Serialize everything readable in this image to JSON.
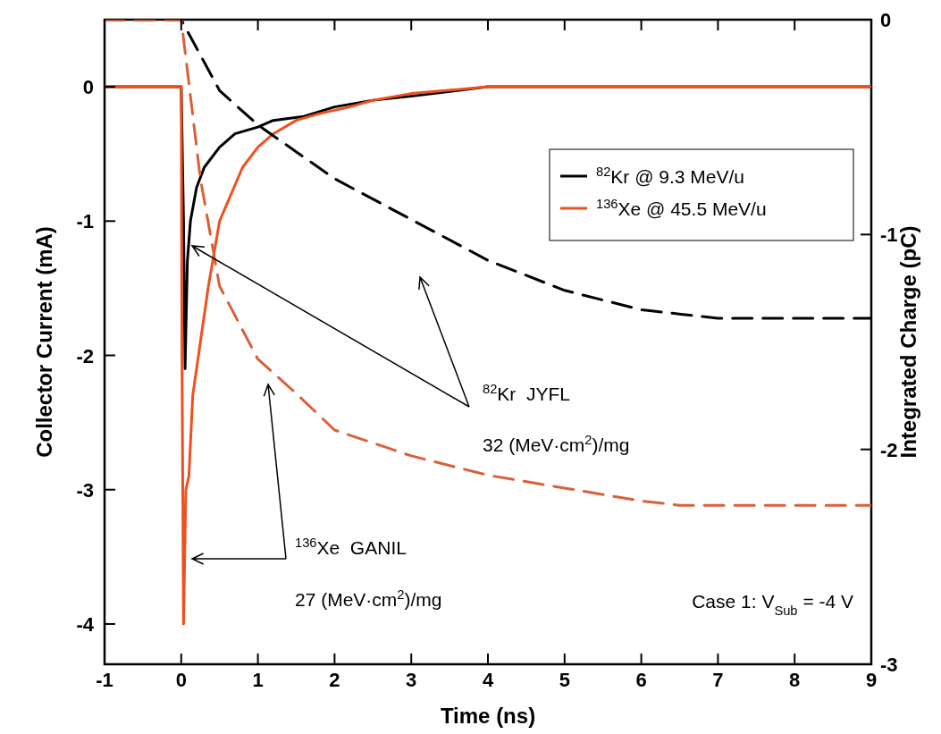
{
  "chart_data": {
    "type": "line",
    "xlabel": "Time (ns)",
    "ylabel": "Collector Current (mA)",
    "y2label": "Integrated Charge (pC)",
    "xlim": [
      -1,
      9
    ],
    "xticks": [
      -1,
      0,
      1,
      2,
      3,
      4,
      5,
      6,
      7,
      8,
      9
    ],
    "ylim": [
      -4.3,
      0.5
    ],
    "yticks": [
      -4,
      -3,
      -2,
      -1,
      0
    ],
    "y2lim": [
      -3,
      0
    ],
    "y2ticks": [
      -3,
      -2,
      -1,
      0
    ],
    "grid": false,
    "legend": "top right",
    "series": [
      {
        "name": "$^{82}$Kr @ 9.3 MeV/u",
        "color": "#000000",
        "line_style": "solid",
        "x": [
          -1,
          -0.5,
          0,
          0.03,
          0.05,
          0.08,
          0.12,
          0.2,
          0.3,
          0.5,
          0.7,
          1,
          1.2,
          1.6,
          2,
          2.5,
          3,
          4,
          5,
          6,
          7,
          8,
          9
        ],
        "values": [
          0,
          0,
          0,
          -1,
          -2.1,
          -1.3,
          -1.0,
          -0.75,
          -0.6,
          -0.45,
          -0.35,
          -0.3,
          -0.25,
          -0.22,
          -0.15,
          -0.1,
          -0.07,
          0,
          0,
          0,
          0,
          0,
          0
        ]
      },
      {
        "name": "$^{136}$Xe @ 45.5 MeV/u",
        "color": "#f0501e",
        "line_style": "solid",
        "x": [
          -1,
          -0.5,
          0,
          0.01,
          0.03,
          0.06,
          0.1,
          0.15,
          0.25,
          0.35,
          0.5,
          0.65,
          0.8,
          1,
          1.2,
          1.5,
          1.8,
          2.2,
          2.5,
          3,
          4,
          5,
          6,
          7,
          8,
          9
        ],
        "values": [
          0,
          0,
          0,
          -2,
          -4.0,
          -3.0,
          -2.9,
          -2.3,
          -1.9,
          -1.5,
          -1.0,
          -0.8,
          -0.6,
          -0.45,
          -0.35,
          -0.25,
          -0.2,
          -0.15,
          -0.1,
          -0.05,
          0,
          0,
          0,
          0,
          0,
          0
        ]
      },
      {
        "color": "#000000",
        "line_style": "dashed",
        "axis": "y2",
        "x": [
          -1,
          0,
          0.5,
          1,
          2,
          3,
          4,
          5,
          6,
          7,
          9
        ],
        "values": [
          0,
          0,
          -0.33,
          -0.49,
          -0.74,
          -0.93,
          -1.12,
          -1.26,
          -1.35,
          -1.39,
          -1.39
        ]
      },
      {
        "color": "#d9603a",
        "line_style": "dashed",
        "axis": "y2",
        "x": [
          -1,
          0,
          0.25,
          0.5,
          1,
          1.5,
          2,
          3,
          4,
          5,
          6,
          6.5,
          9
        ],
        "values": [
          0,
          0,
          -0.74,
          -1.24,
          -1.58,
          -1.74,
          -1.91,
          -2.03,
          -2.12,
          -2.18,
          -2.24,
          -2.26,
          -2.26
        ]
      }
    ],
    "annotations": [
      "$^{82}$Kr  JYFL",
      "32 (MeV·cm$^{2}$)/mg",
      "$^{136}$Xe  GANIL",
      "27 (MeV·cm$^{2}$)/mg",
      "Case 1: V$_{Sub}$ = -4 V"
    ]
  }
}
